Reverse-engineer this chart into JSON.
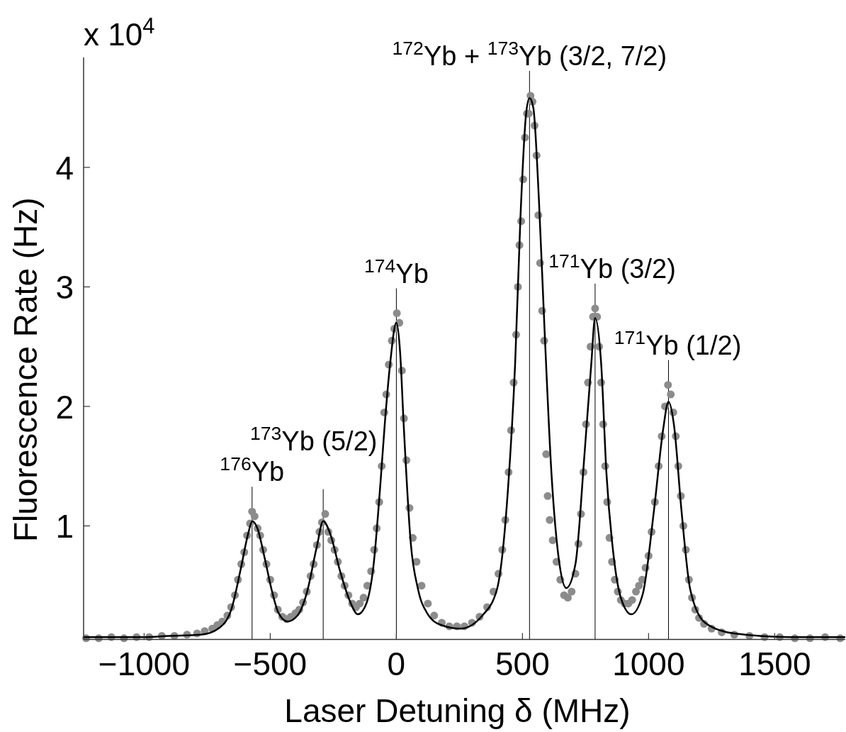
{
  "chart_data": {
    "type": "scatter",
    "xlabel": "Laser Detuning δ (MHz)",
    "ylabel": "Fluorescence Rate (Hz)",
    "xlim": [
      -1240,
      1780
    ],
    "xticks": [
      {
        "value": -1000,
        "label": "−1000"
      },
      {
        "value": -500,
        "label": "−500"
      },
      0,
      500,
      1000,
      1500
    ],
    "ylim": [
      0.05,
      4.92
    ],
    "yticks": [
      1,
      2,
      3,
      4
    ],
    "series": [
      {
        "color": "#8c8c8c",
        "marker": "circle",
        "x": [
          -1230,
          -1180,
          -1130,
          -1080,
          -1030,
          -980,
          -930,
          -880,
          -830,
          -790,
          -760,
          -730,
          -710,
          -690,
          -670,
          -655,
          -640,
          -628,
          -615,
          -603,
          -592,
          -580,
          -572,
          -562,
          -550,
          -540,
          -528,
          -515,
          -500,
          -485,
          -470,
          -452,
          -435,
          -418,
          -400,
          -385,
          -370,
          -355,
          -340,
          -328,
          -315,
          -305,
          -295,
          -282,
          -270,
          -258,
          -245,
          -232,
          -218,
          -205,
          -190,
          -175,
          -160,
          -145,
          -130,
          -115,
          -100,
          -88,
          -78,
          -68,
          -58,
          -48,
          -40,
          -30,
          -18,
          -8,
          2,
          12,
          22,
          30,
          40,
          52,
          65,
          80,
          100,
          125,
          150,
          180,
          210,
          240,
          270,
          300,
          330,
          360,
          385,
          405,
          420,
          432,
          445,
          455,
          465,
          475,
          482,
          488,
          495,
          503,
          510,
          518,
          525,
          532,
          540,
          548,
          556,
          563,
          570,
          578,
          586,
          594,
          600,
          608,
          620,
          635,
          650,
          665,
          680,
          695,
          710,
          722,
          732,
          742,
          752,
          760,
          770,
          780,
          788,
          796,
          804,
          812,
          820,
          828,
          836,
          845,
          855,
          866,
          878,
          890,
          905,
          920,
          935,
          950,
          962,
          975,
          988,
          1000,
          1012,
          1025,
          1040,
          1052,
          1065,
          1077,
          1088,
          1098,
          1108,
          1118,
          1128,
          1138,
          1148,
          1160,
          1172,
          1185,
          1200,
          1220,
          1250,
          1290,
          1340,
          1400,
          1460,
          1520,
          1580,
          1640,
          1700,
          1760
        ],
        "values": [
          0.06,
          0.06,
          0.07,
          0.06,
          0.07,
          0.07,
          0.08,
          0.08,
          0.09,
          0.1,
          0.12,
          0.14,
          0.17,
          0.2,
          0.25,
          0.32,
          0.42,
          0.55,
          0.68,
          0.78,
          0.92,
          1.02,
          1.12,
          1.08,
          0.98,
          0.92,
          0.8,
          0.68,
          0.55,
          0.42,
          0.3,
          0.24,
          0.22,
          0.24,
          0.27,
          0.3,
          0.36,
          0.45,
          0.58,
          0.68,
          0.84,
          0.95,
          1.03,
          1.1,
          0.95,
          0.88,
          0.8,
          0.7,
          0.58,
          0.5,
          0.42,
          0.35,
          0.32,
          0.35,
          0.4,
          0.5,
          0.62,
          0.8,
          0.98,
          1.2,
          1.5,
          1.95,
          2.1,
          2.35,
          2.55,
          2.65,
          2.78,
          2.7,
          2.3,
          1.9,
          1.55,
          1.15,
          0.9,
          0.7,
          0.5,
          0.35,
          0.25,
          0.19,
          0.16,
          0.16,
          0.16,
          0.19,
          0.24,
          0.32,
          0.45,
          0.6,
          0.8,
          1.05,
          1.45,
          1.8,
          2.2,
          2.6,
          3.0,
          3.35,
          3.55,
          3.9,
          4.25,
          4.45,
          4.45,
          4.6,
          4.55,
          4.35,
          4.1,
          3.6,
          3.2,
          2.8,
          2.55,
          1.6,
          1.25,
          1.05,
          0.88,
          0.7,
          0.55,
          0.42,
          0.4,
          0.45,
          0.6,
          0.85,
          1.1,
          1.45,
          1.85,
          2.2,
          2.5,
          2.75,
          2.82,
          2.75,
          2.5,
          2.2,
          1.85,
          1.5,
          1.2,
          0.9,
          0.7,
          0.55,
          0.45,
          0.38,
          0.35,
          0.35,
          0.38,
          0.45,
          0.5,
          0.55,
          0.65,
          0.75,
          0.95,
          1.2,
          1.5,
          1.75,
          2.0,
          2.18,
          2.1,
          1.95,
          1.75,
          1.5,
          1.25,
          1.0,
          0.8,
          0.55,
          0.4,
          0.3,
          0.23,
          0.18,
          0.14,
          0.11,
          0.09,
          0.08,
          0.07,
          0.07,
          0.06,
          0.06,
          0.07,
          0.06
        ]
      },
      {
        "type": "line",
        "color": "#000000",
        "marker": "none",
        "line_style": "solid",
        "x": [
          -1240,
          -1000,
          -900,
          -775,
          -700,
          -653,
          -615,
          -587,
          -571,
          -551,
          -523,
          -495,
          -467,
          -431,
          -392,
          -355,
          -316,
          -290,
          -260,
          -223,
          -186,
          -153,
          -119,
          -91,
          -63,
          -46,
          -25,
          0,
          15,
          29,
          57,
          86,
          122,
          178,
          254,
          341,
          399,
          442,
          471,
          492,
          514,
          528,
          543,
          565,
          587,
          615,
          643,
          674,
          710,
          746,
          773,
          788,
          812,
          833,
          862,
          890,
          932,
          977,
          1022,
          1058,
          1079,
          1101,
          1130,
          1165,
          1224,
          1339,
          1558,
          1780
        ],
        "values": [
          0.07,
          0.07,
          0.08,
          0.09,
          0.15,
          0.31,
          0.66,
          0.94,
          1.04,
          0.98,
          0.74,
          0.47,
          0.27,
          0.2,
          0.25,
          0.44,
          0.82,
          1.04,
          0.92,
          0.62,
          0.38,
          0.26,
          0.35,
          0.66,
          1.36,
          1.85,
          2.35,
          2.7,
          2.45,
          1.85,
          0.86,
          0.47,
          0.27,
          0.17,
          0.14,
          0.25,
          0.47,
          1.29,
          2.36,
          3.58,
          4.44,
          4.58,
          4.5,
          3.74,
          2.67,
          1.44,
          0.74,
          0.48,
          0.68,
          1.6,
          2.36,
          2.74,
          2.36,
          1.44,
          0.74,
          0.4,
          0.26,
          0.43,
          1.14,
          1.81,
          2.04,
          1.84,
          1.14,
          0.47,
          0.19,
          0.1,
          0.07,
          0.07
        ]
      }
    ],
    "ref_lines": [
      {
        "axis": "x",
        "value": -572,
        "color": "#000000",
        "label": "$^{176}$Yb"
      },
      {
        "axis": "x",
        "value": -290,
        "color": "#000000",
        "label": "$^{173}$Yb (5/2)"
      },
      {
        "axis": "x",
        "value": 0,
        "color": "#000000",
        "label": "$^{174}$Yb"
      },
      {
        "axis": "x",
        "value": 528,
        "color": "#000000",
        "label": "$^{172}$Yb + $^{173}$Yb (3/2, 7/2)"
      },
      {
        "axis": "x",
        "value": 788,
        "color": "#000000",
        "label": "$^{171}$Yb (3/2)"
      },
      {
        "axis": "x",
        "value": 1079,
        "color": "#000000",
        "label": "$^{171}$Yb (1/2)"
      }
    ],
    "annotations": [
      "x 10$^{4}$"
    ]
  }
}
